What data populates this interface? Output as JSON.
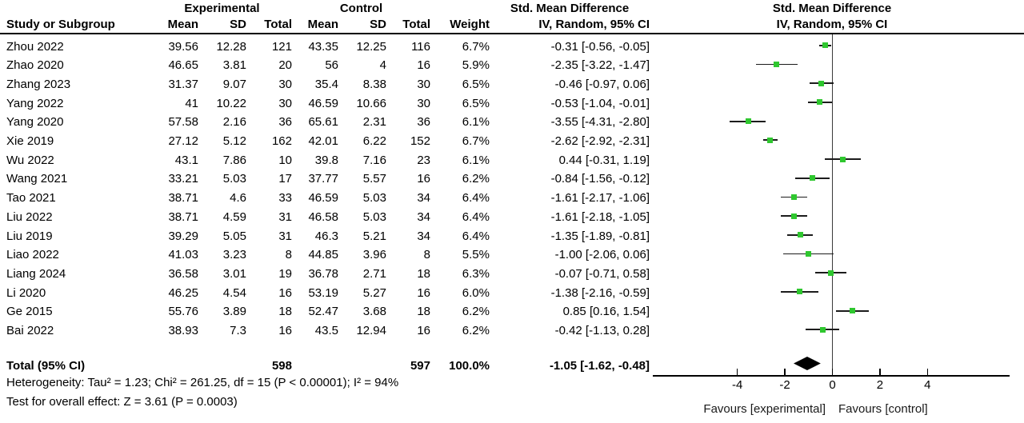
{
  "header": {
    "group_experimental": "Experimental",
    "group_control": "Control",
    "smd_text_col": "Std. Mean Difference",
    "smd_plot_col": "Std. Mean Difference",
    "col_study": "Study or Subgroup",
    "col_mean_exp": "Mean",
    "col_sd_exp": "SD",
    "col_total_exp": "Total",
    "col_mean_ctl": "Mean",
    "col_sd_ctl": "SD",
    "col_total_ctl": "Total",
    "col_weight": "Weight",
    "col_ci_text": "IV, Random, 95% CI",
    "col_ci_plot": "IV, Random, 95% CI"
  },
  "chart_data": {
    "type": "forest",
    "effect_measure": "Std. Mean Difference",
    "model": "IV, Random, 95% CI",
    "studies": [
      {
        "name": "Zhou 2022",
        "exp_mean": "39.56",
        "exp_sd": "12.28",
        "exp_total": "121",
        "ctl_mean": "43.35",
        "ctl_sd": "12.25",
        "ctl_total": "116",
        "weight": "6.7%",
        "ci_text": "-0.31 [-0.56, -0.05]",
        "est": -0.31,
        "lo": -0.56,
        "hi": -0.05
      },
      {
        "name": "Zhao 2020",
        "exp_mean": "46.65",
        "exp_sd": "3.81",
        "exp_total": "20",
        "ctl_mean": "56",
        "ctl_sd": "4",
        "ctl_total": "16",
        "weight": "5.9%",
        "ci_text": "-2.35 [-3.22, -1.47]",
        "est": -2.35,
        "lo": -3.22,
        "hi": -1.47
      },
      {
        "name": "Zhang 2023",
        "exp_mean": "31.37",
        "exp_sd": "9.07",
        "exp_total": "30",
        "ctl_mean": "35.4",
        "ctl_sd": "8.38",
        "ctl_total": "30",
        "weight": "6.5%",
        "ci_text": "-0.46 [-0.97, 0.06]",
        "est": -0.46,
        "lo": -0.97,
        "hi": 0.06
      },
      {
        "name": "Yang 2022",
        "exp_mean": "41",
        "exp_sd": "10.22",
        "exp_total": "30",
        "ctl_mean": "46.59",
        "ctl_sd": "10.66",
        "ctl_total": "30",
        "weight": "6.5%",
        "ci_text": "-0.53 [-1.04, -0.01]",
        "est": -0.53,
        "lo": -1.04,
        "hi": -0.01
      },
      {
        "name": "Yang 2020",
        "exp_mean": "57.58",
        "exp_sd": "2.16",
        "exp_total": "36",
        "ctl_mean": "65.61",
        "ctl_sd": "2.31",
        "ctl_total": "36",
        "weight": "6.1%",
        "ci_text": "-3.55 [-4.31, -2.80]",
        "est": -3.55,
        "lo": -4.31,
        "hi": -2.8
      },
      {
        "name": "Xie 2019",
        "exp_mean": "27.12",
        "exp_sd": "5.12",
        "exp_total": "162",
        "ctl_mean": "42.01",
        "ctl_sd": "6.22",
        "ctl_total": "152",
        "weight": "6.7%",
        "ci_text": "-2.62 [-2.92, -2.31]",
        "est": -2.62,
        "lo": -2.92,
        "hi": -2.31
      },
      {
        "name": "Wu 2022",
        "exp_mean": "43.1",
        "exp_sd": "7.86",
        "exp_total": "10",
        "ctl_mean": "39.8",
        "ctl_sd": "7.16",
        "ctl_total": "23",
        "weight": "6.1%",
        "ci_text": "0.44 [-0.31, 1.19]",
        "est": 0.44,
        "lo": -0.31,
        "hi": 1.19
      },
      {
        "name": "Wang 2021",
        "exp_mean": "33.21",
        "exp_sd": "5.03",
        "exp_total": "17",
        "ctl_mean": "37.77",
        "ctl_sd": "5.57",
        "ctl_total": "16",
        "weight": "6.2%",
        "ci_text": "-0.84 [-1.56, -0.12]",
        "est": -0.84,
        "lo": -1.56,
        "hi": -0.12
      },
      {
        "name": "Tao 2021",
        "exp_mean": "38.71",
        "exp_sd": "4.6",
        "exp_total": "33",
        "ctl_mean": "46.59",
        "ctl_sd": "5.03",
        "ctl_total": "34",
        "weight": "6.4%",
        "ci_text": "-1.61 [-2.17, -1.06]",
        "est": -1.61,
        "lo": -2.17,
        "hi": -1.06
      },
      {
        "name": "Liu 2022",
        "exp_mean": "38.71",
        "exp_sd": "4.59",
        "exp_total": "31",
        "ctl_mean": "46.58",
        "ctl_sd": "5.03",
        "ctl_total": "34",
        "weight": "6.4%",
        "ci_text": "-1.61 [-2.18, -1.05]",
        "est": -1.61,
        "lo": -2.18,
        "hi": -1.05
      },
      {
        "name": "Liu 2019",
        "exp_mean": "39.29",
        "exp_sd": "5.05",
        "exp_total": "31",
        "ctl_mean": "46.3",
        "ctl_sd": "5.21",
        "ctl_total": "34",
        "weight": "6.4%",
        "ci_text": "-1.35 [-1.89, -0.81]",
        "est": -1.35,
        "lo": -1.89,
        "hi": -0.81
      },
      {
        "name": "Liao 2022",
        "exp_mean": "41.03",
        "exp_sd": "3.23",
        "exp_total": "8",
        "ctl_mean": "44.85",
        "ctl_sd": "3.96",
        "ctl_total": "8",
        "weight": "5.5%",
        "ci_text": "-1.00 [-2.06, 0.06]",
        "est": -1.0,
        "lo": -2.06,
        "hi": 0.06
      },
      {
        "name": "Liang 2024",
        "exp_mean": "36.58",
        "exp_sd": "3.01",
        "exp_total": "19",
        "ctl_mean": "36.78",
        "ctl_sd": "2.71",
        "ctl_total": "18",
        "weight": "6.3%",
        "ci_text": "-0.07 [-0.71, 0.58]",
        "est": -0.07,
        "lo": -0.71,
        "hi": 0.58
      },
      {
        "name": "Li 2020",
        "exp_mean": "46.25",
        "exp_sd": "4.54",
        "exp_total": "16",
        "ctl_mean": "53.19",
        "ctl_sd": "5.27",
        "ctl_total": "16",
        "weight": "6.0%",
        "ci_text": "-1.38 [-2.16, -0.59]",
        "est": -1.38,
        "lo": -2.16,
        "hi": -0.59
      },
      {
        "name": "Ge 2015",
        "exp_mean": "55.76",
        "exp_sd": "3.89",
        "exp_total": "18",
        "ctl_mean": "52.47",
        "ctl_sd": "3.68",
        "ctl_total": "18",
        "weight": "6.2%",
        "ci_text": "0.85 [0.16, 1.54]",
        "est": 0.85,
        "lo": 0.16,
        "hi": 1.54
      },
      {
        "name": "Bai 2022",
        "exp_mean": "38.93",
        "exp_sd": "7.3",
        "exp_total": "16",
        "ctl_mean": "43.5",
        "ctl_sd": "12.94",
        "ctl_total": "16",
        "weight": "6.2%",
        "ci_text": "-0.42 [-1.13, 0.28]",
        "est": -0.42,
        "lo": -1.13,
        "hi": 0.28
      }
    ],
    "total": {
      "label": "Total (95% CI)",
      "exp_total": "598",
      "ctl_total": "597",
      "weight": "100.0%",
      "ci_text": "-1.05 [-1.62, -0.48]",
      "est": -1.05,
      "lo": -1.62,
      "hi": -0.48
    },
    "heterogeneity": "Heterogeneity: Tau² = 1.23; Chi² = 261.25, df = 15 (P < 0.00001); I² = 94%",
    "overall_effect": "Test for overall effect: Z = 3.61 (P = 0.0003)",
    "axis": {
      "ticks": [
        -4,
        -2,
        0,
        2,
        4
      ],
      "xlim": [
        -7.5,
        7.5
      ],
      "favours_left": "Favours [experimental]",
      "favours_right": "Favours [control]"
    },
    "colors": {
      "marker_green": "#2FC72F",
      "line_black": "#1c1c1c",
      "diamond_black": "#000000"
    }
  }
}
